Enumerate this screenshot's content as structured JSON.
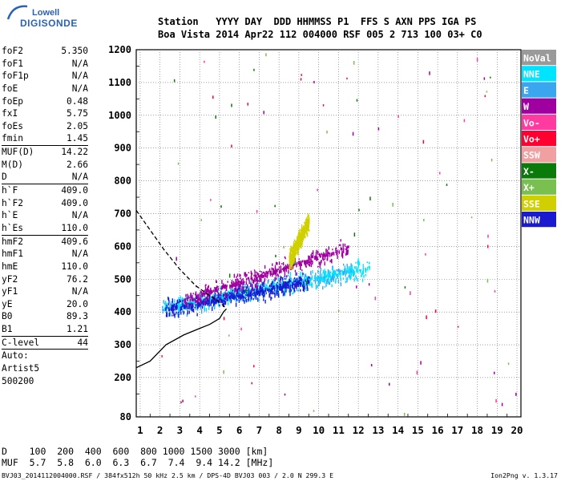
{
  "logo": {
    "line1": "Lowell",
    "line2": "DIGISONDE"
  },
  "header": {
    "row1": "Station   YYYY DAY  DDD HHMMSS P1  FFS S AXN PPS IGA PS",
    "row2": "Boa Vista 2014 Apr22 112 004000 RSF 005 2 713 100 03+ C0"
  },
  "params": [
    {
      "name": "foF2",
      "value": "5.350"
    },
    {
      "name": "foF1",
      "value": "N/A"
    },
    {
      "name": "foF1p",
      "value": "N/A"
    },
    {
      "name": "foE",
      "value": "N/A"
    },
    {
      "name": "foEp",
      "value": "0.48"
    },
    {
      "name": "fxI",
      "value": "5.75"
    },
    {
      "name": "foEs",
      "value": "2.05"
    },
    {
      "name": "fmin",
      "value": "1.45",
      "sep": true
    },
    {
      "name": "MUF(D)",
      "value": "14.22"
    },
    {
      "name": "M(D)",
      "value": "2.66"
    },
    {
      "name": "D",
      "value": "N/A",
      "sep": true
    },
    {
      "name": "h`F",
      "value": "409.0"
    },
    {
      "name": "h`F2",
      "value": "409.0"
    },
    {
      "name": "h`E",
      "value": "N/A"
    },
    {
      "name": "h`Es",
      "value": "110.0",
      "sep": true
    },
    {
      "name": "hmF2",
      "value": "409.6"
    },
    {
      "name": "hmF1",
      "value": "N/A"
    },
    {
      "name": "hmE",
      "value": "110.0"
    },
    {
      "name": "yF2",
      "value": "76.2"
    },
    {
      "name": "yF1",
      "value": "N/A"
    },
    {
      "name": "yE",
      "value": "20.0"
    },
    {
      "name": "B0",
      "value": "89.3"
    },
    {
      "name": "B1",
      "value": "1.21",
      "sep": true
    },
    {
      "name": "C-level",
      "value": "44",
      "sep": true
    },
    {
      "name": "Auto:",
      "value": ""
    },
    {
      "name": "Artist5",
      "value": ""
    },
    {
      "name": "500200",
      "value": ""
    }
  ],
  "scale_table": {
    "d_row": "D    100  200  400  600  800 1000 1500 3000 [km]",
    "muf_row": "MUF  5.7  5.8  6.0  6.3  6.7  7.4  9.4 14.2 [MHz]"
  },
  "footer": {
    "left": "BVJ03_2014112004000.RSF / 384fx512h 50 kHz 2.5 km / DPS-4D BVJ03 003 / 2.0 N 299.3 E",
    "right": "Ion2Png v. 1.3.17"
  },
  "legend": [
    {
      "label": "NoVal",
      "color": "#9a9a9a"
    },
    {
      "label": "NNE",
      "color": "#00e4ff"
    },
    {
      "label": "E",
      "color": "#3aa6f0"
    },
    {
      "label": "W",
      "color": "#a000a0"
    },
    {
      "label": "Vo-",
      "color": "#ff3aa0"
    },
    {
      "label": "Vo+",
      "color": "#ff0030"
    },
    {
      "label": "SSW",
      "color": "#f0a0a0"
    },
    {
      "label": "X-",
      "color": "#0a7a0a"
    },
    {
      "label": "X+",
      "color": "#7ac050"
    },
    {
      "label": "SSE",
      "color": "#d0d000"
    },
    {
      "label": "NNW",
      "color": "#1a1ad0"
    }
  ],
  "chart_data": {
    "type": "scatter",
    "title": "",
    "xlabel": "",
    "ylabel": "",
    "x_unit": "MHz",
    "y_unit": "km",
    "xlim": [
      0.8,
      20.2
    ],
    "ylim": [
      80,
      1200
    ],
    "xticks": [
      1,
      2,
      3,
      4,
      5,
      6,
      7,
      8,
      9,
      10,
      11,
      12,
      13,
      14,
      15,
      16,
      17,
      18,
      19,
      20
    ],
    "yticks": [
      80,
      200,
      300,
      400,
      500,
      600,
      700,
      800,
      900,
      1000,
      1100,
      1200
    ],
    "grid": true,
    "legend_position": "right",
    "traces": [
      {
        "name": "E",
        "color": "#3aa6f0",
        "x": [
          2.1,
          11.8
        ],
        "y": [
          410,
          530
        ]
      },
      {
        "name": "NNE",
        "color": "#00e4ff",
        "x": [
          2.2,
          12.6
        ],
        "y": [
          415,
          540
        ]
      },
      {
        "name": "NNW",
        "color": "#1a1ad0",
        "x": [
          2.2,
          9.5
        ],
        "y": [
          410,
          495
        ]
      },
      {
        "name": "W",
        "color": "#a000a0",
        "x": [
          3.2,
          11.5
        ],
        "y": [
          440,
          600
        ]
      },
      {
        "name": "SSE",
        "color": "#d0d000",
        "x": [
          8.5,
          9.5
        ],
        "y": [
          560,
          680
        ]
      }
    ],
    "profile": {
      "name": "profile",
      "points": [
        [
          0.8,
          230
        ],
        [
          1.5,
          250
        ],
        [
          2.3,
          300
        ],
        [
          3.2,
          330
        ],
        [
          4.0,
          350
        ],
        [
          4.5,
          362
        ],
        [
          5.0,
          380
        ],
        [
          5.2,
          400
        ],
        [
          5.35,
          409.6
        ]
      ]
    },
    "muf_curve": {
      "name": "muf",
      "points": [
        [
          0.8,
          710
        ],
        [
          1.5,
          650
        ],
        [
          2.2,
          590
        ],
        [
          3.0,
          530
        ],
        [
          3.8,
          480
        ],
        [
          4.5,
          450
        ],
        [
          5.0,
          430
        ],
        [
          5.35,
          410
        ]
      ]
    }
  }
}
